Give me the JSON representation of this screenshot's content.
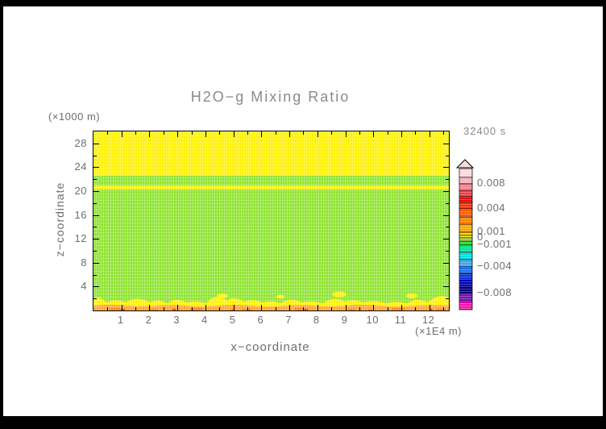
{
  "colors": {
    "page_bg": "#000000",
    "canvas_bg": "#ffffff",
    "frame": "#000000",
    "label_gray": "#6e6e6e",
    "title_gray": "#8a8a8a",
    "plot_yellow": "#FFF100",
    "plot_green": "#8FE431",
    "plot_orange": "#FFA435",
    "plot_orange_dark": "#FF7A1E",
    "plot_red": "#EE3000"
  },
  "chart_data": {
    "type": "heatmap",
    "title": "H2O−g Mixing Ratio",
    "time_label": "32400 s",
    "xlabel": "x−coordinate",
    "x_unit": "(×1E4 m)",
    "ylabel": "z−coordinate",
    "y_unit": "(×1000 m)",
    "x_range": [
      0,
      12.7
    ],
    "y_range": [
      0,
      30
    ],
    "x_major_ticks": [
      1,
      2,
      3,
      4,
      5,
      6,
      7,
      8,
      9,
      10,
      11,
      12
    ],
    "x_minor_step": 0.5,
    "y_major_ticks": [
      4,
      8,
      12,
      16,
      20,
      24,
      28
    ],
    "y_minor_step": 2,
    "grid": false,
    "legend_position": "right-colorbar",
    "field_regions": [
      {
        "z_from": 30,
        "z_to": 22.6,
        "value_approx": "~0.0005 to 0.001",
        "color": "#FFF100"
      },
      {
        "z_from": 22.6,
        "z_to": 20.95,
        "value_approx": "~0 to 0.0005",
        "color": "#8FE431"
      },
      {
        "z_from": 20.95,
        "z_to": 20.3,
        "value_approx": "~0.0005 to 0.001",
        "color": "#FFF100"
      },
      {
        "z_from": 20.3,
        "z_to": 1.8,
        "value_approx": "~0 to 0.0005",
        "color": "#8FE431"
      },
      {
        "z_from": 1.8,
        "z_to": 0.6,
        "value_approx": "patchy ~0.0005 to 0.001",
        "color": "#FFF100",
        "render_color": "#8FE431",
        "patchy": true
      },
      {
        "z_from": 0.6,
        "z_to": 0,
        "value_approx": "~0.001 to 0.004 with spots to 0.005",
        "color": "#FFA435"
      }
    ],
    "colorbar": {
      "orientation": "vertical",
      "arrow_top": true,
      "labels": [
        "0.008",
        "0.004",
        "0.001",
        "0",
        "−0.001",
        "−0.004",
        "−0.008"
      ],
      "label_offsets": [
        19,
        50,
        79,
        86,
        95,
        122,
        155
      ],
      "bands": [
        {
          "color": "#FBD9DF",
          "h": 11
        },
        {
          "color": "#F8B1BF",
          "h": 8
        },
        {
          "color": "#F7828F",
          "h": 8
        },
        {
          "color": "#F23F43",
          "h": 8
        },
        {
          "color": "#ED0D0D",
          "h": 7
        },
        {
          "color": "#FF2E00",
          "h": 8
        },
        {
          "color": "#FF5C00",
          "h": 10
        },
        {
          "color": "#FF8200",
          "h": 9
        },
        {
          "color": "#FFA400",
          "h": 10
        },
        {
          "color": "#FFD300",
          "h": 4
        },
        {
          "color": "#FFF100",
          "h": 3
        },
        {
          "color": "#8FE431",
          "h": 4
        },
        {
          "color": "#2BD82B",
          "h": 5
        },
        {
          "color": "#00E596",
          "h": 9
        },
        {
          "color": "#00E0E0",
          "h": 9
        },
        {
          "color": "#35AAF2",
          "h": 9
        },
        {
          "color": "#1D6FF2",
          "h": 8
        },
        {
          "color": "#0033E8",
          "h": 8
        },
        {
          "color": "#0000C8",
          "h": 9
        },
        {
          "color": "#00007D",
          "h": 8
        },
        {
          "color": "#7711B5",
          "h": 10
        },
        {
          "color": "#FF14AE",
          "h": 10
        }
      ]
    }
  }
}
